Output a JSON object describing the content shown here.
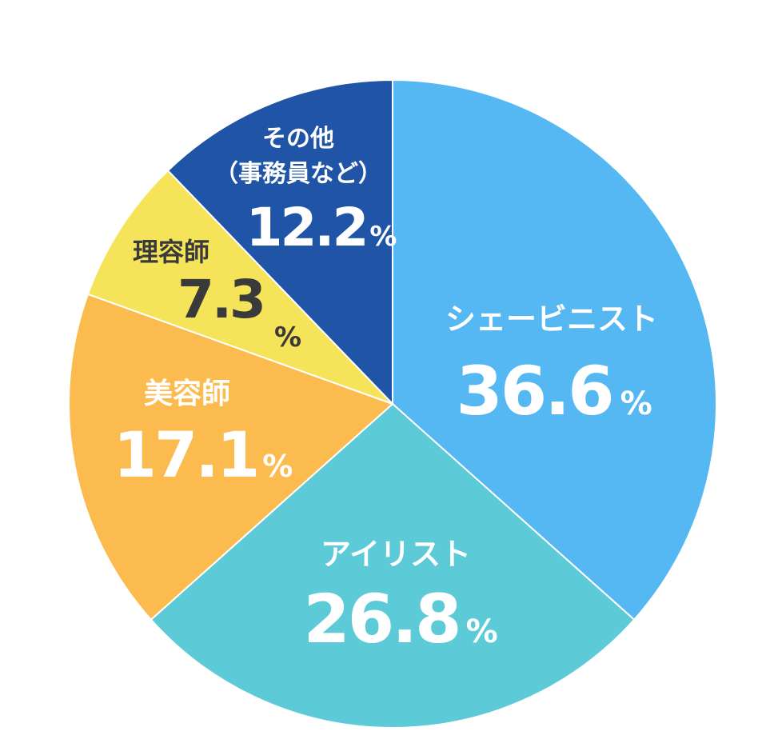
{
  "chart_data": {
    "type": "pie",
    "start_angle_deg": 0,
    "direction": "clockwise",
    "slices": [
      {
        "label": "シェービニスト",
        "label_lines": [
          "シェービニスト"
        ],
        "value": 36.6,
        "display": "36.6",
        "unit": "%",
        "color": "#55b8f2",
        "text_color": "#ffffff"
      },
      {
        "label": "アイリスト",
        "label_lines": [
          "アイリスト"
        ],
        "value": 26.8,
        "display": "26.8",
        "unit": "%",
        "color": "#5ccbd7",
        "text_color": "#ffffff"
      },
      {
        "label": "美容師",
        "label_lines": [
          "美容師"
        ],
        "value": 17.1,
        "display": "17.1",
        "unit": "%",
        "color": "#fbbb4f",
        "text_color": "#ffffff"
      },
      {
        "label": "理容師",
        "label_lines": [
          "理容師"
        ],
        "value": 7.3,
        "display": "7.3",
        "unit": "%",
        "color": "#f5e45a",
        "text_color": "#3a3a3a"
      },
      {
        "label": "その他（事務員など）",
        "label_lines": [
          "その他",
          "（事務員など）"
        ],
        "value": 12.2,
        "display": "12.2",
        "unit": "%",
        "color": "#1f54a6",
        "text_color": "#ffffff"
      }
    ]
  }
}
